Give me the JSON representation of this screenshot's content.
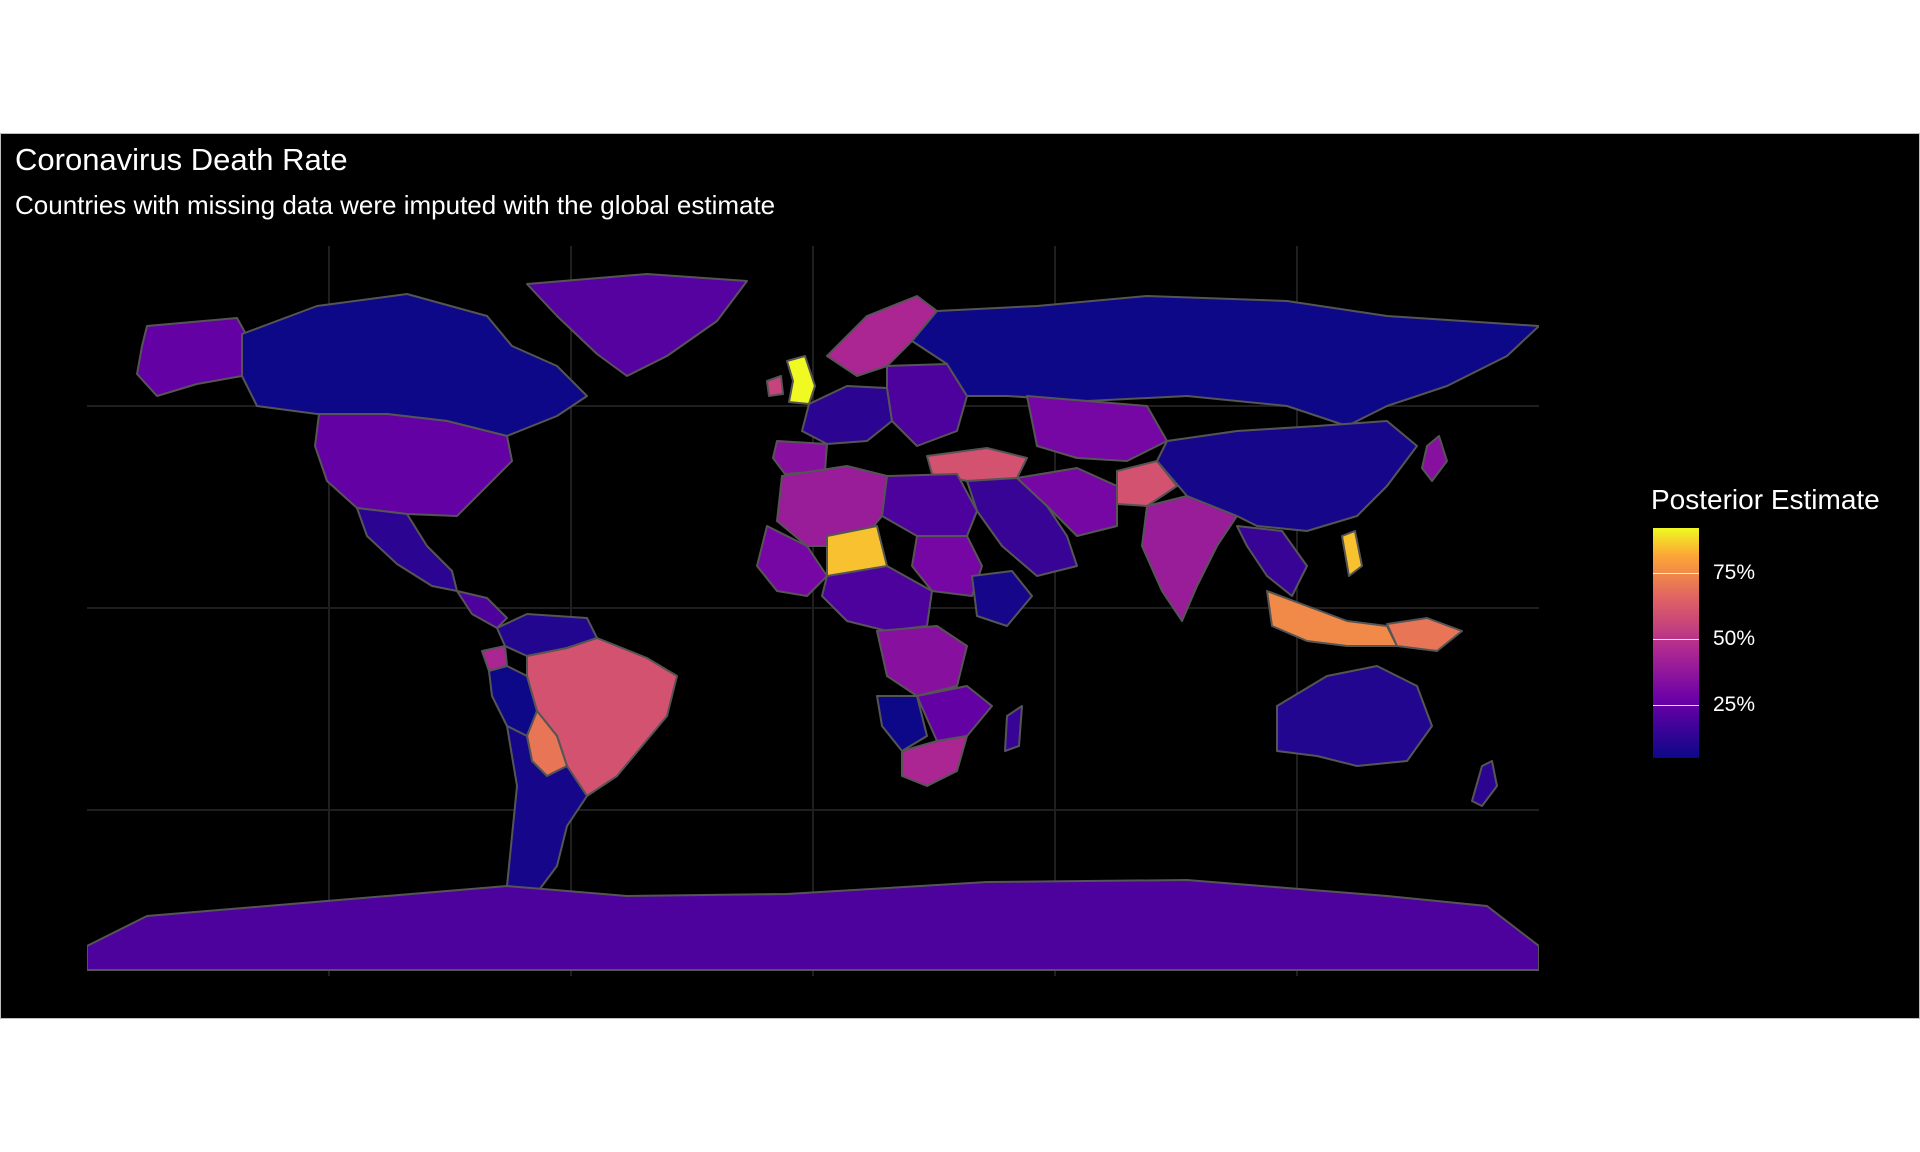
{
  "map": {
    "title": "Coronavirus Death Rate",
    "subtitle": "Countries with missing data were imputed with the global estimate",
    "legend": {
      "title": "Posterior Estimate",
      "ticks": [
        {
          "label": "75%",
          "value": 0.75
        },
        {
          "label": "50%",
          "value": 0.5
        },
        {
          "label": "25%",
          "value": 0.25
        }
      ],
      "range": [
        0.05,
        0.92
      ]
    },
    "colors": {
      "background": "#000000",
      "border": "#555555",
      "grid": "#1f1f1f"
    },
    "regions": [
      {
        "name": "canada",
        "value": 0.05
      },
      {
        "name": "alaska",
        "value": 0.25
      },
      {
        "name": "greenland",
        "value": 0.22
      },
      {
        "name": "usa",
        "value": 0.25
      },
      {
        "name": "mexico",
        "value": 0.12
      },
      {
        "name": "central-america",
        "value": 0.2
      },
      {
        "name": "colombia-venezuela",
        "value": 0.1
      },
      {
        "name": "peru",
        "value": 0.05
      },
      {
        "name": "ecuador",
        "value": 0.45
      },
      {
        "name": "brazil",
        "value": 0.6
      },
      {
        "name": "bolivia",
        "value": 0.7
      },
      {
        "name": "argentina-chile",
        "value": 0.07
      },
      {
        "name": "antarctica",
        "value": 0.2
      },
      {
        "name": "uk",
        "value": 0.95
      },
      {
        "name": "ireland",
        "value": 0.55
      },
      {
        "name": "scandinavia",
        "value": 0.45
      },
      {
        "name": "western-europe",
        "value": 0.12
      },
      {
        "name": "iberia",
        "value": 0.35
      },
      {
        "name": "eastern-europe",
        "value": 0.2
      },
      {
        "name": "turkey",
        "value": 0.6
      },
      {
        "name": "russia",
        "value": 0.05
      },
      {
        "name": "kazakhstan",
        "value": 0.3
      },
      {
        "name": "middle-east",
        "value": 0.15
      },
      {
        "name": "iran",
        "value": 0.3
      },
      {
        "name": "afghanistan",
        "value": 0.6
      },
      {
        "name": "india",
        "value": 0.4
      },
      {
        "name": "china",
        "value": 0.07
      },
      {
        "name": "southeast-asia",
        "value": 0.15
      },
      {
        "name": "japan",
        "value": 0.35
      },
      {
        "name": "philippines",
        "value": 0.85
      },
      {
        "name": "indonesia",
        "value": 0.75
      },
      {
        "name": "new-guinea",
        "value": 0.7
      },
      {
        "name": "north-africa",
        "value": 0.4
      },
      {
        "name": "egypt-libya",
        "value": 0.2
      },
      {
        "name": "niger",
        "value": 0.85
      },
      {
        "name": "west-africa",
        "value": 0.3
      },
      {
        "name": "sudan",
        "value": 0.3
      },
      {
        "name": "ethiopia",
        "value": 0.07
      },
      {
        "name": "central-africa",
        "value": 0.2
      },
      {
        "name": "drc",
        "value": 0.35
      },
      {
        "name": "southern-africa",
        "value": 0.25
      },
      {
        "name": "south-africa",
        "value": 0.45
      },
      {
        "name": "namibia",
        "value": 0.05
      },
      {
        "name": "madagascar",
        "value": 0.15
      },
      {
        "name": "australia",
        "value": 0.1
      },
      {
        "name": "new-zealand",
        "value": 0.12
      }
    ]
  }
}
